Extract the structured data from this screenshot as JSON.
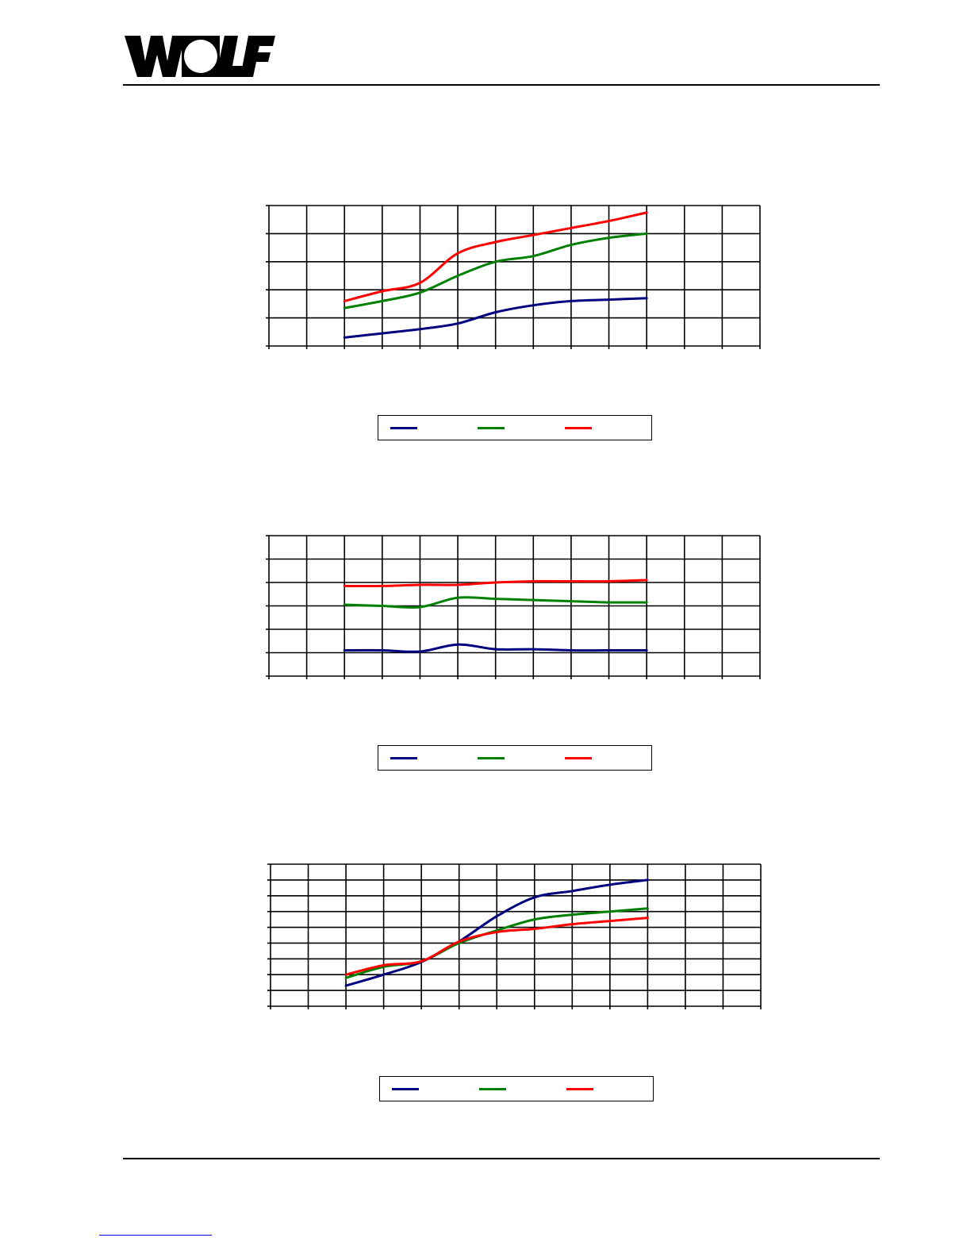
{
  "brand": {
    "logo_text": "WOLF"
  },
  "colors": {
    "series1": "#00007f",
    "series2": "#008000",
    "series3": "#ff0000",
    "grid": "#000000"
  },
  "chart_data": [
    {
      "type": "line",
      "grid": true,
      "x": [
        -2,
        -1,
        0,
        1,
        2,
        3,
        4,
        5,
        6,
        7,
        8,
        9,
        10,
        11
      ],
      "ylim": [
        0,
        5
      ],
      "series": [
        {
          "values": [
            null,
            null,
            0.3,
            0.45,
            0.6,
            0.8,
            1.2,
            1.45,
            1.6,
            1.65,
            1.7,
            null,
            null,
            null
          ],
          "color": "#00007f"
        },
        {
          "values": [
            null,
            null,
            1.35,
            1.6,
            1.9,
            2.5,
            3.0,
            3.2,
            3.6,
            3.85,
            4.0,
            null,
            null,
            null
          ],
          "color": "#008000"
        },
        {
          "values": [
            null,
            null,
            1.6,
            1.95,
            2.25,
            3.3,
            3.7,
            3.95,
            4.2,
            4.45,
            4.75,
            null,
            null,
            null
          ],
          "color": "#ff0000"
        }
      ]
    },
    {
      "type": "line",
      "grid": true,
      "x": [
        -2,
        -1,
        0,
        1,
        2,
        3,
        4,
        5,
        6,
        7,
        8,
        9,
        10,
        11
      ],
      "ylim": [
        0,
        6
      ],
      "series": [
        {
          "values": [
            null,
            null,
            1.1,
            1.1,
            1.05,
            1.35,
            1.15,
            1.15,
            1.1,
            1.1,
            1.1,
            null,
            null,
            null
          ],
          "color": "#00007f"
        },
        {
          "values": [
            null,
            null,
            3.05,
            3.0,
            2.95,
            3.35,
            3.3,
            3.25,
            3.2,
            3.15,
            3.15,
            null,
            null,
            null
          ],
          "color": "#008000"
        },
        {
          "values": [
            null,
            null,
            3.85,
            3.85,
            3.9,
            3.9,
            4.0,
            4.05,
            4.05,
            4.05,
            4.1,
            null,
            null,
            null
          ],
          "color": "#ff0000"
        }
      ]
    },
    {
      "type": "line",
      "grid": true,
      "x": [
        -2,
        -1,
        0,
        1,
        2,
        3,
        4,
        5,
        6,
        7,
        8,
        9,
        10,
        11
      ],
      "ylim": [
        0,
        9
      ],
      "series": [
        {
          "values": [
            null,
            null,
            1.3,
            2.0,
            2.8,
            4.1,
            5.7,
            6.9,
            7.3,
            7.7,
            8.0,
            null,
            null,
            null
          ],
          "color": "#00007f"
        },
        {
          "values": [
            null,
            null,
            1.8,
            2.5,
            2.85,
            4.0,
            4.8,
            5.5,
            5.8,
            6.0,
            6.2,
            null,
            null,
            null
          ],
          "color": "#008000"
        },
        {
          "values": [
            null,
            null,
            2.0,
            2.6,
            2.85,
            4.1,
            4.7,
            4.9,
            5.2,
            5.4,
            5.6,
            null,
            null,
            null
          ],
          "color": "#ff0000"
        }
      ]
    }
  ]
}
